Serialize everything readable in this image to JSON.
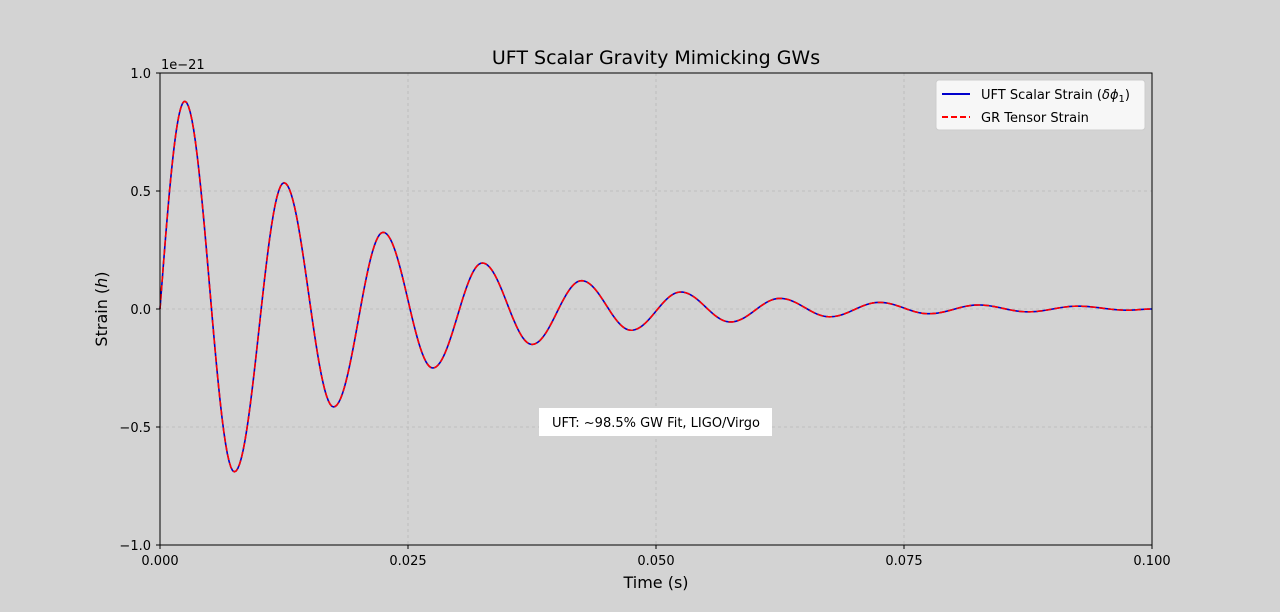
{
  "chart_data": {
    "type": "line",
    "title": "UFT Scalar Gravity Mimicking GWs",
    "xlabel": "Time (s)",
    "ylabel_prefix": "Strain (",
    "ylabel_var": "h",
    "ylabel_suffix": ")",
    "xlim": [
      0.0,
      0.1
    ],
    "ylim": [
      -1.0,
      1.0
    ],
    "y_offset_label": "1e−21",
    "x_ticks": [
      0.0,
      0.025,
      0.05,
      0.075,
      0.1
    ],
    "x_tick_labels": [
      "0.000",
      "0.025",
      "0.050",
      "0.075",
      "0.100"
    ],
    "y_ticks": [
      -1.0,
      -0.5,
      0.0,
      0.5,
      1.0
    ],
    "y_tick_labels": [
      "−1.0",
      "−0.5",
      "0.0",
      "0.5",
      "1.0"
    ],
    "grid": true,
    "legend_position": "top-right",
    "annotation": "UFT: ~98.5% GW Fit, LIGO/Virgo",
    "series": [
      {
        "name_prefix": "UFT Scalar Strain (",
        "name_math": "δϕ",
        "name_sub": "1",
        "name_suffix": ")",
        "color": "#0000cc",
        "style": "solid",
        "x": [
          0.0,
          0.0025,
          0.0075,
          0.0125,
          0.0175,
          0.0225,
          0.0275,
          0.0325,
          0.0375,
          0.0425,
          0.0475,
          0.0525,
          0.0575,
          0.0625,
          0.0675,
          0.0725,
          0.0775,
          0.0825,
          0.0875,
          0.0925,
          0.0975,
          0.1
        ],
        "y": [
          0.0,
          0.88,
          -0.69,
          0.535,
          -0.415,
          0.325,
          -0.25,
          0.195,
          -0.15,
          0.12,
          -0.09,
          0.072,
          -0.055,
          0.045,
          -0.033,
          0.028,
          -0.02,
          0.017,
          -0.012,
          0.012,
          -0.005,
          0.0
        ]
      },
      {
        "name": "GR Tensor Strain",
        "color": "#ff0000",
        "style": "dashed",
        "x": [
          0.0,
          0.0025,
          0.0075,
          0.0125,
          0.0175,
          0.0225,
          0.0275,
          0.0325,
          0.0375,
          0.0425,
          0.0475,
          0.0525,
          0.0575,
          0.0625,
          0.0675,
          0.0725,
          0.0775,
          0.0825,
          0.0875,
          0.0925,
          0.0975,
          0.1
        ],
        "y": [
          0.0,
          0.88,
          -0.69,
          0.535,
          -0.415,
          0.325,
          -0.25,
          0.195,
          -0.15,
          0.12,
          -0.09,
          0.072,
          -0.055,
          0.045,
          -0.033,
          0.028,
          -0.02,
          0.017,
          -0.012,
          0.012,
          -0.005,
          0.0
        ]
      }
    ]
  }
}
